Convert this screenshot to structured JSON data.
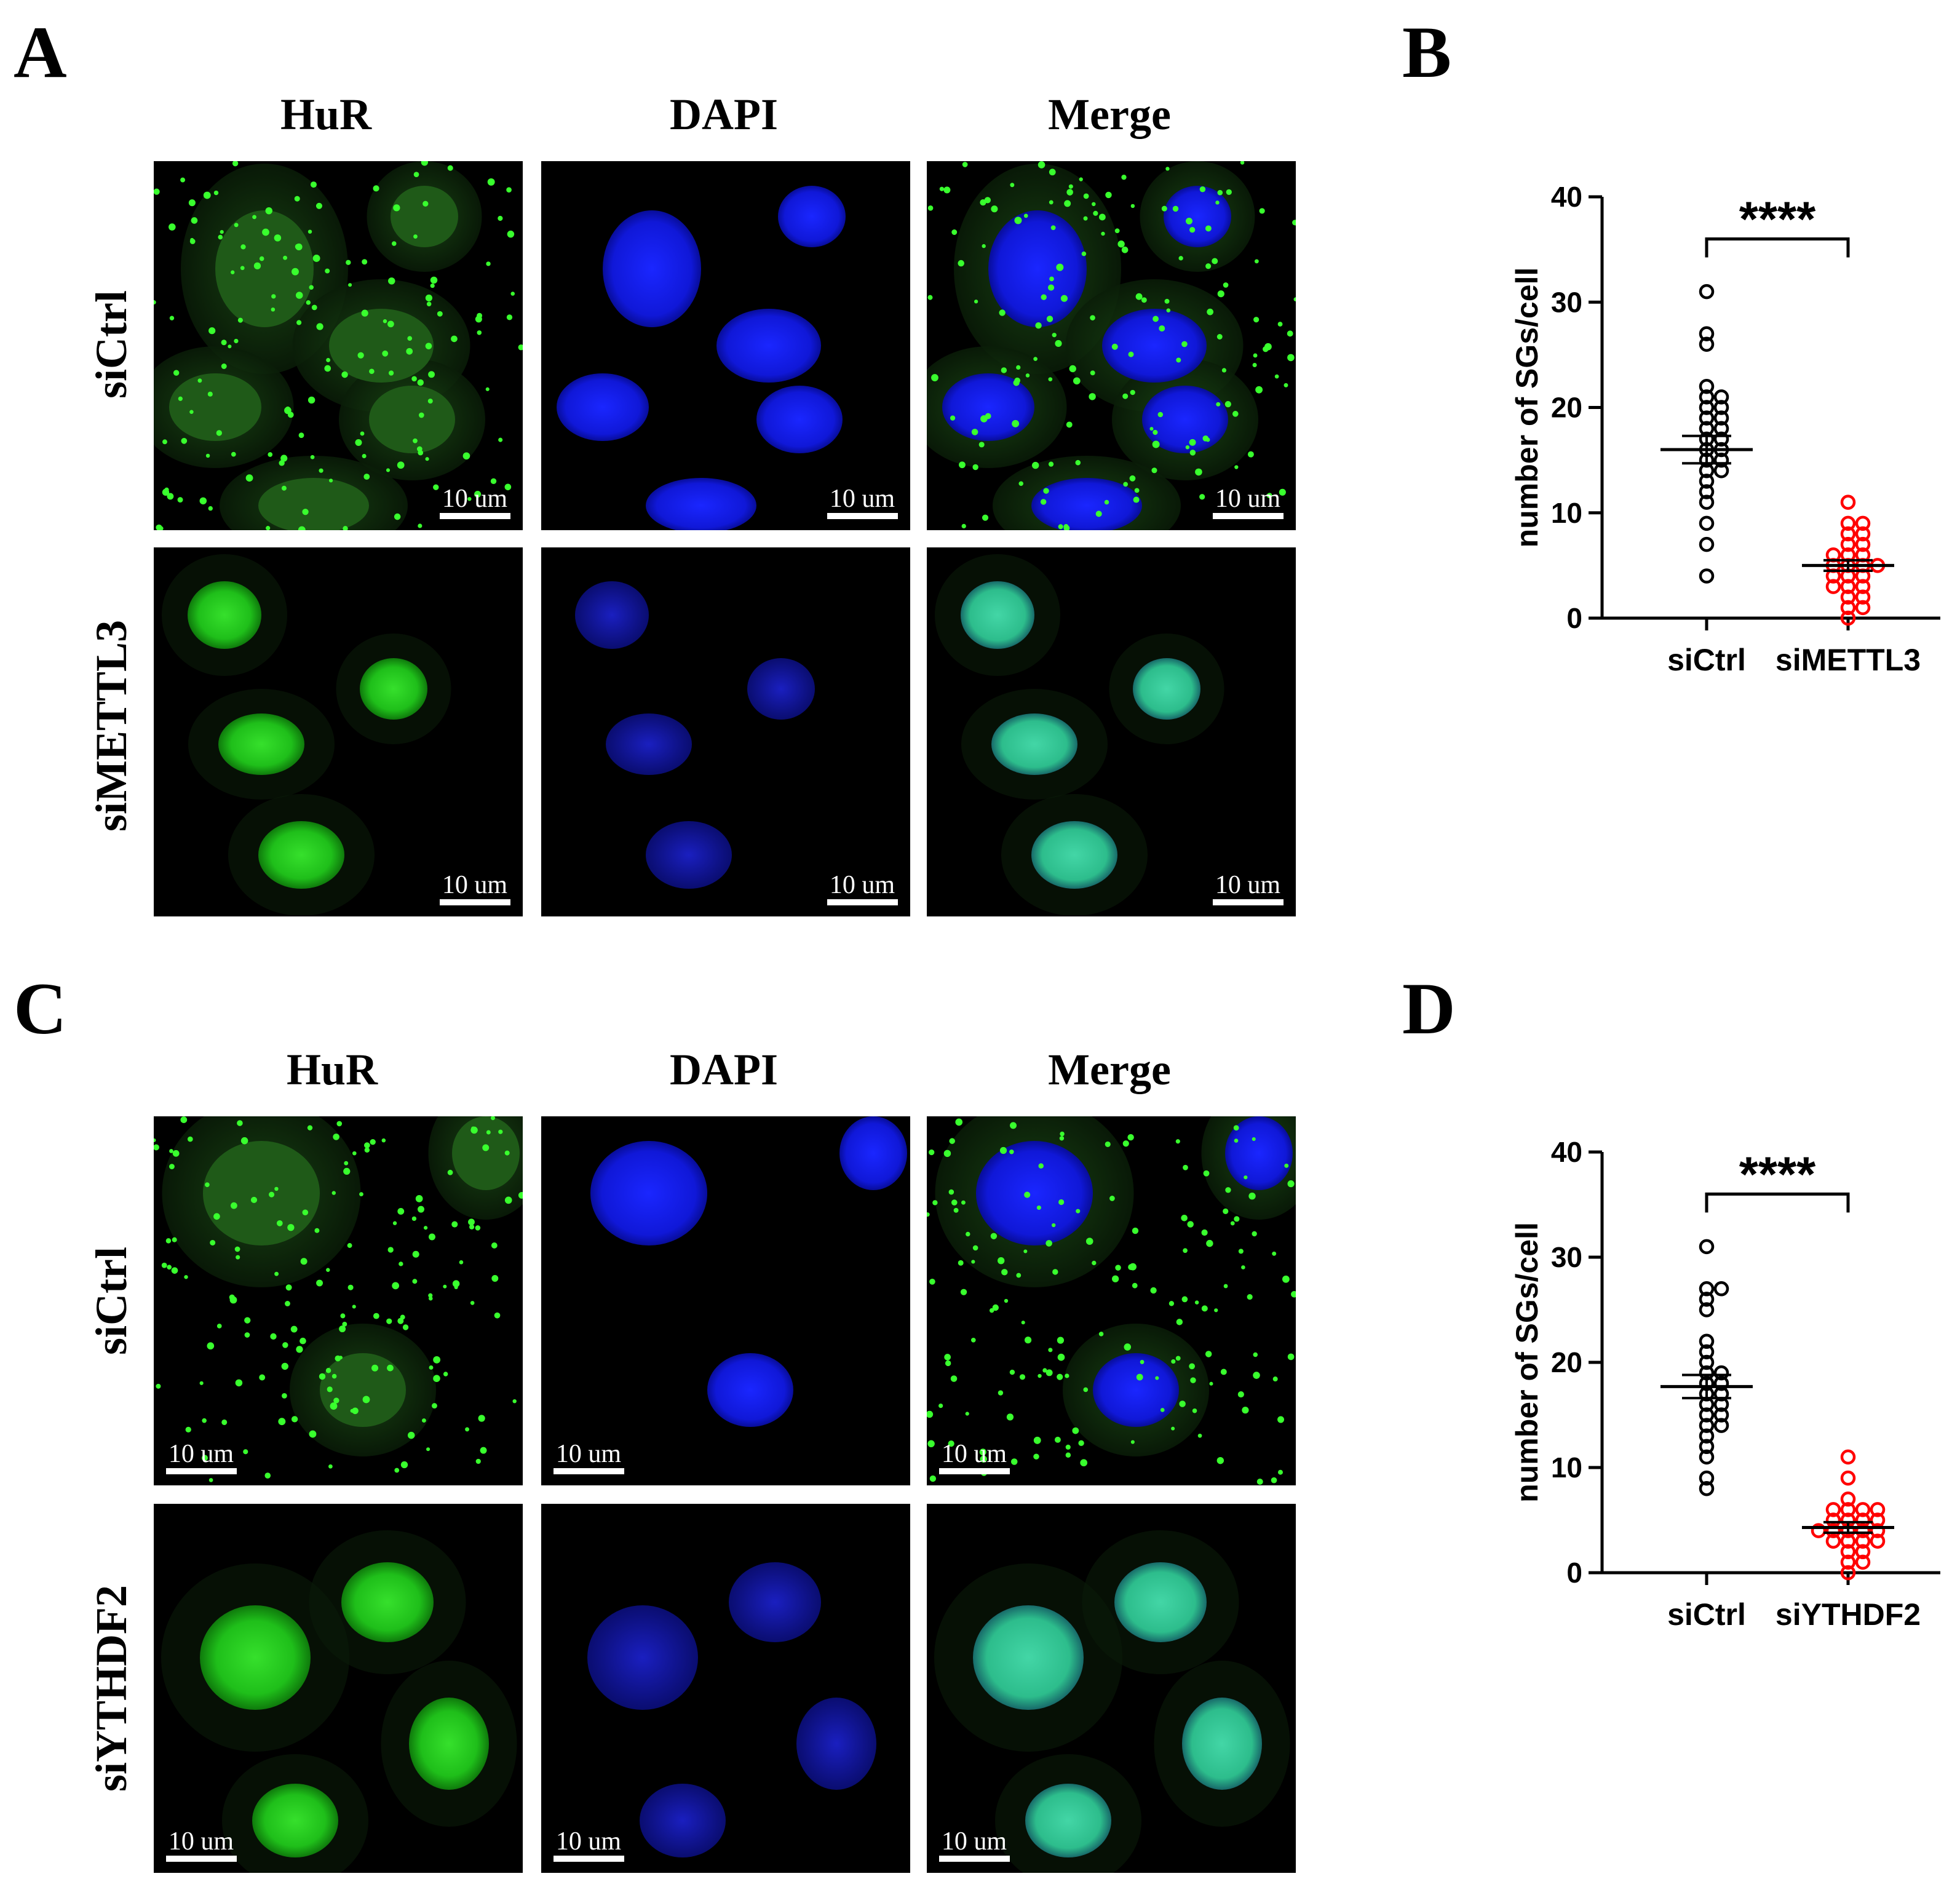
{
  "figure": {
    "panel_letters": [
      "A",
      "B",
      "C",
      "D"
    ],
    "panel_A": {
      "columns": [
        "HuR",
        "DAPI",
        "Merge"
      ],
      "rows": [
        "siCtrl",
        "siMETTL3"
      ],
      "scale_bar_label": "10 um"
    },
    "panel_C": {
      "columns": [
        "HuR",
        "DAPI",
        "Merge"
      ],
      "rows": [
        "siCtrl",
        "siYTHDF2"
      ],
      "scale_bar_label": "10 um"
    },
    "colors": {
      "hur": "#22c41e",
      "dapi": "#1622ff",
      "ctrl_points": "#000000",
      "kd_points": "#ff0000"
    }
  },
  "chart_data": [
    {
      "panel": "B",
      "type": "scatter",
      "ylabel": "number of SGs/cell",
      "ylim": [
        0,
        40
      ],
      "yticks": [
        0,
        10,
        20,
        30,
        40
      ],
      "categories": [
        "siCtrl",
        "siMETTL3"
      ],
      "significance": "****",
      "series": [
        {
          "name": "siCtrl",
          "mean": 16,
          "sem": 1.3,
          "values": [
            31,
            27,
            26,
            22,
            21,
            21,
            20,
            20,
            19,
            19,
            18,
            18,
            17,
            17,
            16,
            16,
            15,
            15,
            14,
            14,
            13,
            12,
            11,
            9,
            7,
            4
          ]
        },
        {
          "name": "siMETTL3",
          "mean": 5,
          "sem": 0.5,
          "values": [
            11,
            9,
            9,
            8,
            8,
            7,
            7,
            6,
            6,
            6,
            5,
            5,
            5,
            5,
            4,
            4,
            4,
            3,
            3,
            3,
            2,
            2,
            1,
            1,
            0
          ]
        }
      ]
    },
    {
      "panel": "D",
      "type": "scatter",
      "ylabel": "number of SGs/cell",
      "ylim": [
        0,
        40
      ],
      "yticks": [
        0,
        10,
        20,
        30,
        40
      ],
      "categories": [
        "siCtrl",
        "siYTHDF2"
      ],
      "significance": "****",
      "series": [
        {
          "name": "siCtrl",
          "mean": 17.7,
          "sem": 1.1,
          "values": [
            31,
            27,
            27,
            26,
            25,
            22,
            21,
            20,
            19,
            19,
            18,
            18,
            17,
            17,
            16,
            16,
            15,
            15,
            14,
            14,
            13,
            12,
            11,
            9,
            8
          ]
        },
        {
          "name": "siYTHDF2",
          "mean": 4.3,
          "sem": 0.5,
          "values": [
            11,
            9,
            7,
            6,
            6,
            6,
            6,
            5,
            5,
            5,
            5,
            4,
            4,
            4,
            4,
            4,
            3,
            3,
            3,
            3,
            2,
            2,
            1,
            1,
            0
          ]
        }
      ]
    }
  ]
}
